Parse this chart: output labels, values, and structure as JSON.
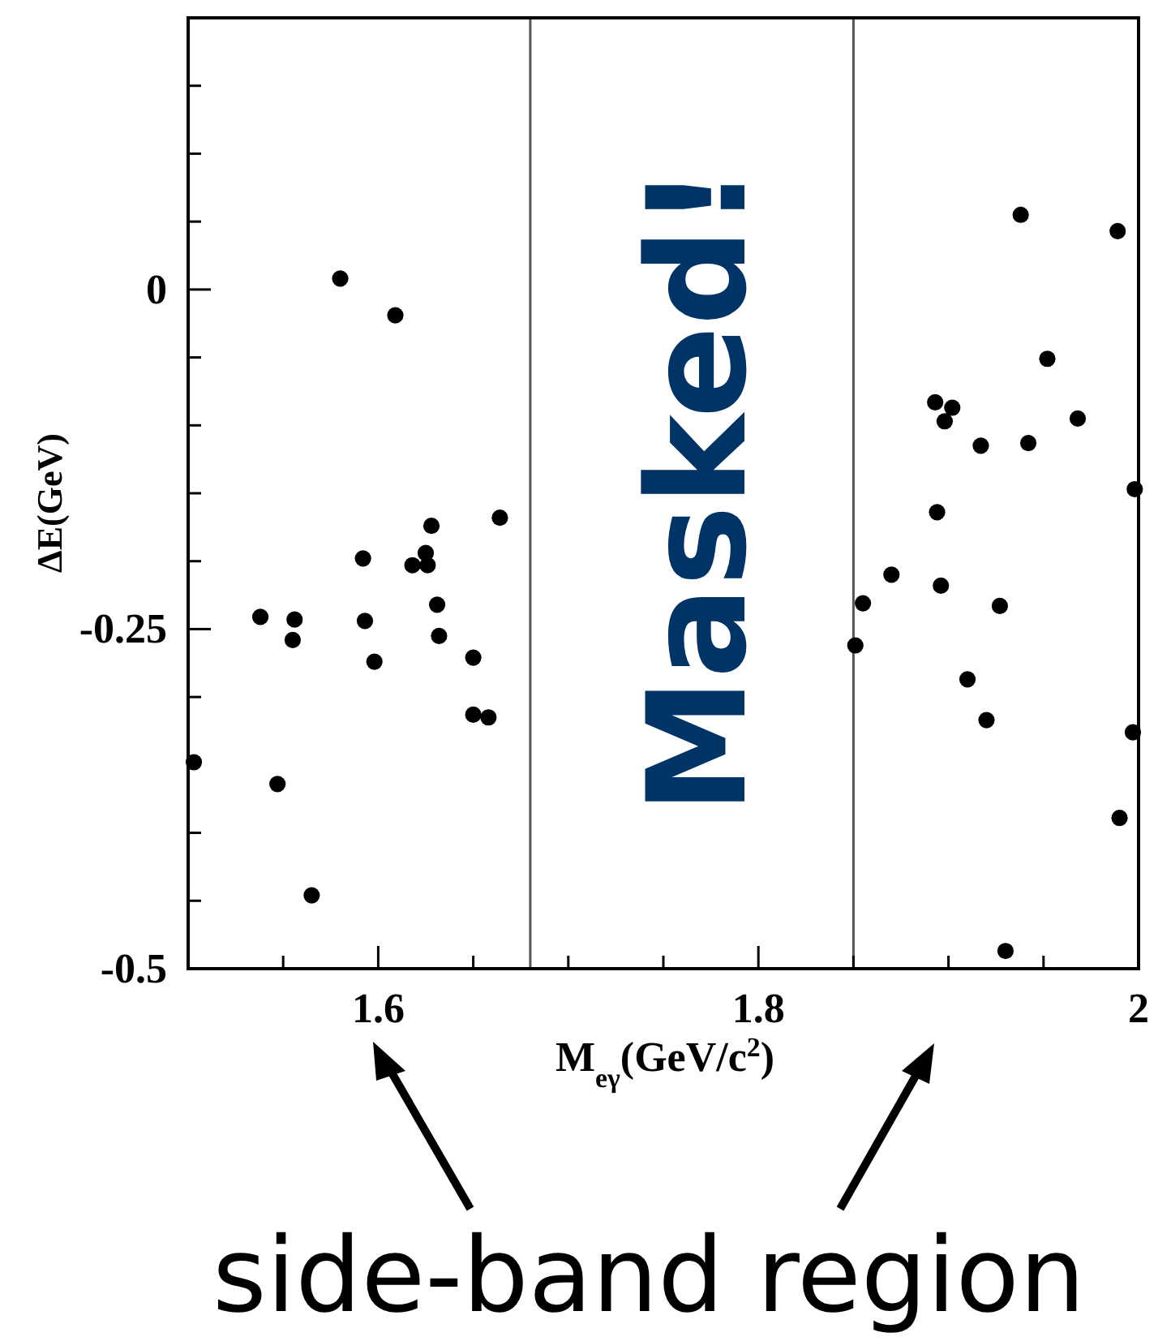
{
  "chart_data": {
    "type": "scatter",
    "xlabel": "M$_{eγ}$(GeV/c$^{2}$)",
    "ylabel": "ΔE(GeV)",
    "xlim": [
      1.5,
      2
    ],
    "ylim": [
      -0.5,
      0.2
    ],
    "xticks": [
      {
        "value": 1.55,
        "label": null
      },
      1.6,
      {
        "value": 1.65,
        "label": null
      },
      {
        "value": 1.7,
        "label": null
      },
      {
        "value": 1.75,
        "label": null
      },
      1.8,
      {
        "value": 1.85,
        "label": null
      },
      {
        "value": 1.9,
        "label": null
      },
      {
        "value": 1.95,
        "label": null
      },
      2
    ],
    "yticks": [
      -0.5,
      {
        "value": -0.45,
        "label": null
      },
      {
        "value": -0.4,
        "label": null
      },
      {
        "value": -0.35,
        "label": null
      },
      {
        "value": -0.3,
        "label": null
      },
      -0.25,
      {
        "value": -0.2,
        "label": null
      },
      {
        "value": -0.15,
        "label": null
      },
      {
        "value": -0.1,
        "label": null
      },
      {
        "value": -0.05,
        "label": null
      },
      0,
      {
        "value": 0.05,
        "label": null
      },
      {
        "value": 0.1,
        "label": null
      },
      {
        "value": 0.15,
        "label": null
      }
    ],
    "grid": false,
    "marker": "circle",
    "series": [
      {
        "color": "#000000",
        "x": [
          1.58,
          1.609,
          1.628,
          1.664,
          1.592,
          1.625,
          1.618,
          1.626,
          1.631,
          1.538,
          1.556,
          1.593,
          1.555,
          1.632,
          1.598,
          1.65,
          1.65,
          1.658,
          1.503,
          1.547,
          1.565,
          1.938,
          1.989,
          1.952,
          1.893,
          1.902,
          1.898,
          1.968,
          1.917,
          1.942,
          1.998,
          1.894,
          1.87,
          1.896,
          1.855,
          1.927,
          1.851,
          1.91,
          1.92,
          1.997,
          1.99,
          1.93
        ],
        "values": [
          0.008,
          -0.019,
          -0.174,
          -0.168,
          -0.198,
          -0.194,
          -0.203,
          -0.203,
          -0.232,
          -0.241,
          -0.243,
          -0.244,
          -0.258,
          -0.255,
          -0.274,
          -0.271,
          -0.313,
          -0.315,
          -0.348,
          -0.364,
          -0.446,
          0.055,
          0.043,
          -0.051,
          -0.083,
          -0.087,
          -0.097,
          -0.095,
          -0.115,
          -0.113,
          -0.147,
          -0.164,
          -0.21,
          -0.218,
          -0.231,
          -0.233,
          -0.262,
          -0.287,
          -0.317,
          -0.326,
          -0.389,
          -0.487
        ]
      }
    ],
    "ref_lines": [
      {
        "axis": "x",
        "value": 1.68,
        "color": "#555555"
      },
      {
        "axis": "x",
        "value": 1.85,
        "color": "#555555"
      }
    ],
    "annotations": [
      "Masked!",
      "side-band region"
    ]
  }
}
